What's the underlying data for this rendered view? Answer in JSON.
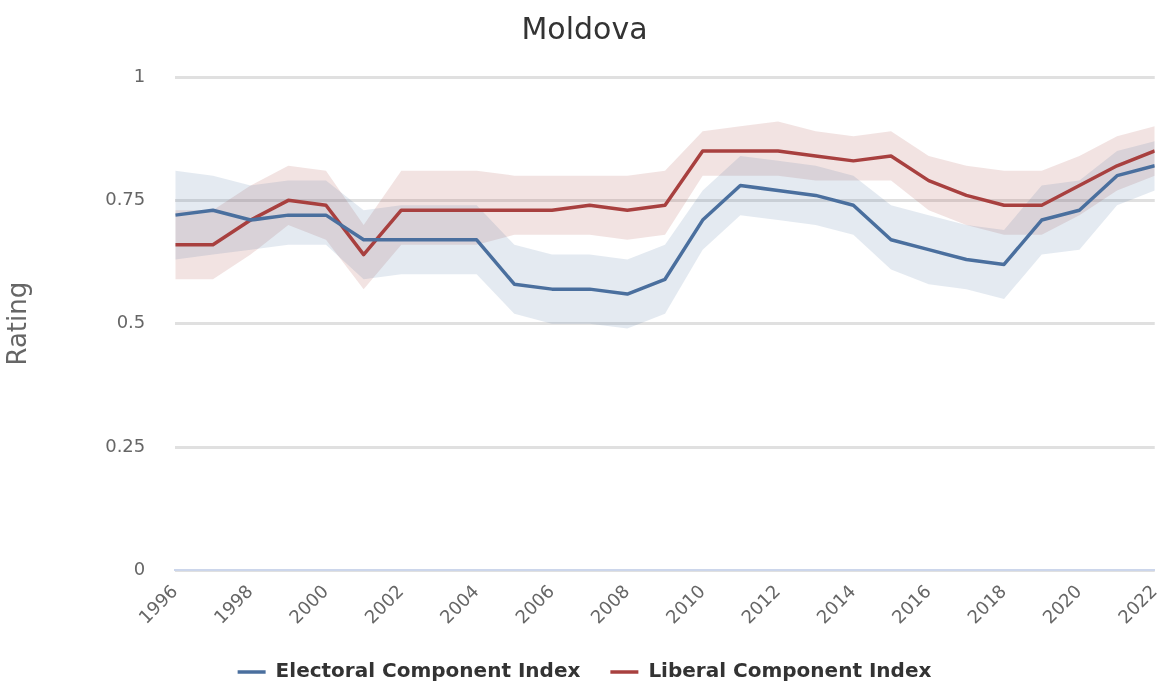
{
  "chart_data": {
    "type": "line",
    "title": "Moldova",
    "ylabel": "Rating",
    "x": [
      1996,
      1997,
      1998,
      1999,
      2000,
      2001,
      2002,
      2003,
      2004,
      2005,
      2006,
      2007,
      2008,
      2009,
      2010,
      2011,
      2012,
      2013,
      2014,
      2015,
      2016,
      2017,
      2018,
      2019,
      2020,
      2021,
      2022
    ],
    "series": [
      {
        "name": "Electoral Component Index",
        "color": "#4a6f9e",
        "values": [
          0.72,
          0.73,
          0.71,
          0.72,
          0.72,
          0.67,
          0.67,
          0.67,
          0.67,
          0.58,
          0.57,
          0.57,
          0.56,
          0.59,
          0.71,
          0.78,
          0.77,
          0.76,
          0.74,
          0.67,
          0.65,
          0.63,
          0.62,
          0.71,
          0.73,
          0.8,
          0.82
        ],
        "lower": [
          0.63,
          0.64,
          0.65,
          0.66,
          0.66,
          0.59,
          0.6,
          0.6,
          0.6,
          0.52,
          0.5,
          0.5,
          0.49,
          0.52,
          0.65,
          0.72,
          0.71,
          0.7,
          0.68,
          0.61,
          0.58,
          0.57,
          0.55,
          0.64,
          0.65,
          0.74,
          0.77
        ],
        "upper": [
          0.81,
          0.8,
          0.78,
          0.79,
          0.79,
          0.73,
          0.74,
          0.74,
          0.74,
          0.66,
          0.64,
          0.64,
          0.63,
          0.66,
          0.77,
          0.84,
          0.83,
          0.82,
          0.8,
          0.74,
          0.72,
          0.7,
          0.69,
          0.78,
          0.79,
          0.85,
          0.87
        ]
      },
      {
        "name": "Liberal Component Index",
        "color": "#a8403f",
        "values": [
          0.66,
          0.66,
          0.71,
          0.75,
          0.74,
          0.64,
          0.73,
          0.73,
          0.73,
          0.73,
          0.73,
          0.74,
          0.73,
          0.74,
          0.85,
          0.85,
          0.85,
          0.84,
          0.83,
          0.84,
          0.79,
          0.76,
          0.74,
          0.74,
          0.78,
          0.82,
          0.85
        ],
        "lower": [
          0.59,
          0.59,
          0.64,
          0.7,
          0.67,
          0.57,
          0.66,
          0.66,
          0.66,
          0.68,
          0.68,
          0.68,
          0.67,
          0.68,
          0.8,
          0.8,
          0.8,
          0.79,
          0.79,
          0.79,
          0.73,
          0.7,
          0.68,
          0.68,
          0.72,
          0.77,
          0.8
        ],
        "upper": [
          0.73,
          0.73,
          0.78,
          0.82,
          0.81,
          0.7,
          0.81,
          0.81,
          0.81,
          0.8,
          0.8,
          0.8,
          0.8,
          0.81,
          0.89,
          0.9,
          0.91,
          0.89,
          0.88,
          0.89,
          0.84,
          0.82,
          0.81,
          0.81,
          0.84,
          0.88,
          0.9
        ]
      }
    ],
    "xlim": [
      1996,
      2022
    ],
    "xticks": [
      1996,
      1998,
      2000,
      2002,
      2004,
      2006,
      2008,
      2010,
      2012,
      2014,
      2016,
      2018,
      2020,
      2022
    ],
    "ylim": [
      0,
      1
    ],
    "yticks": [
      0,
      0.25,
      0.5,
      0.75,
      1
    ],
    "grid": "y",
    "legend": "bottom",
    "marker": "none",
    "line_style": "solid"
  }
}
